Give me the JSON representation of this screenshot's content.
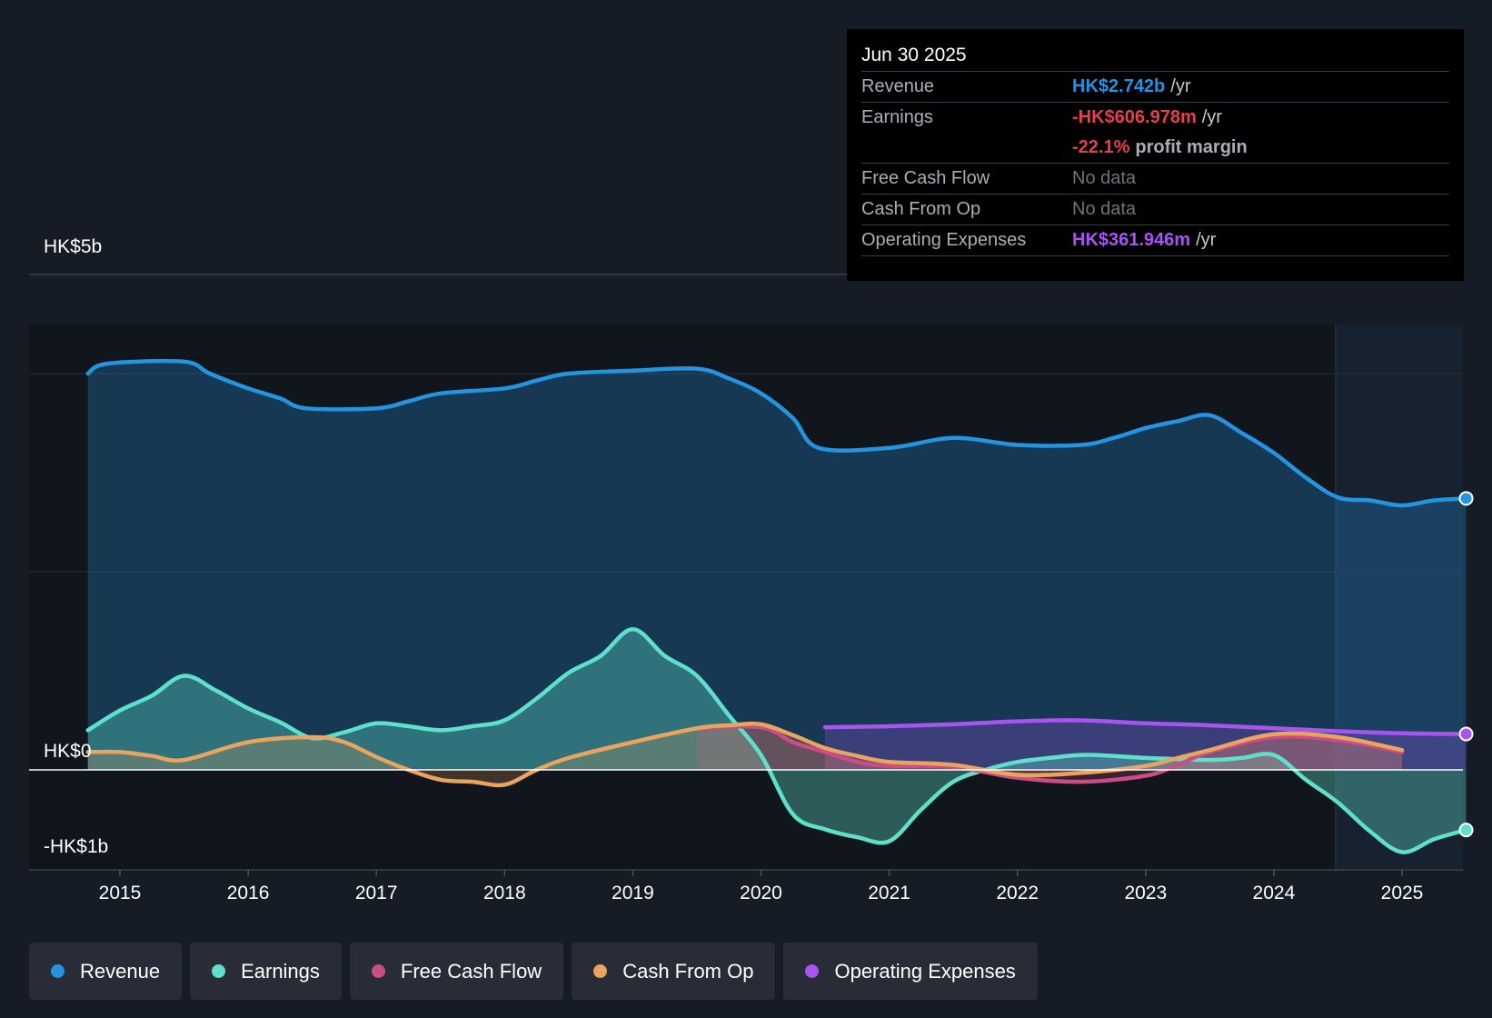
{
  "chart_data": {
    "type": "area",
    "title": "",
    "y_axis": {
      "min": -1,
      "max": 5,
      "unit": "HK$ billions",
      "labels": [
        {
          "value": 5,
          "text": "HK$5b"
        },
        {
          "value": 0,
          "text": "HK$0"
        },
        {
          "value": -1,
          "text": "-HK$1b"
        }
      ]
    },
    "x_axis": {
      "ticks": [
        "2015",
        "2016",
        "2017",
        "2018",
        "2019",
        "2020",
        "2021",
        "2022",
        "2023",
        "2024",
        "2025"
      ]
    },
    "highlight_from": 2024.5,
    "series": [
      {
        "name": "Revenue",
        "color": "#2394df",
        "points": [
          [
            2014.75,
            4.0
          ],
          [
            2014.9,
            4.1
          ],
          [
            2015.5,
            4.12
          ],
          [
            2015.7,
            4.0
          ],
          [
            2016.0,
            3.85
          ],
          [
            2016.25,
            3.75
          ],
          [
            2016.45,
            3.65
          ],
          [
            2017.0,
            3.65
          ],
          [
            2017.25,
            3.72
          ],
          [
            2017.5,
            3.8
          ],
          [
            2018.0,
            3.85
          ],
          [
            2018.25,
            3.93
          ],
          [
            2018.5,
            4.0
          ],
          [
            2019.0,
            4.03
          ],
          [
            2019.5,
            4.05
          ],
          [
            2019.75,
            3.95
          ],
          [
            2020.0,
            3.8
          ],
          [
            2020.25,
            3.55
          ],
          [
            2020.45,
            3.25
          ],
          [
            2021.0,
            3.25
          ],
          [
            2021.5,
            3.35
          ],
          [
            2022.0,
            3.28
          ],
          [
            2022.5,
            3.28
          ],
          [
            2022.75,
            3.35
          ],
          [
            2023.0,
            3.45
          ],
          [
            2023.25,
            3.52
          ],
          [
            2023.5,
            3.58
          ],
          [
            2023.75,
            3.4
          ],
          [
            2024.0,
            3.2
          ],
          [
            2024.25,
            2.95
          ],
          [
            2024.5,
            2.75
          ],
          [
            2024.75,
            2.72
          ],
          [
            2025.0,
            2.67
          ],
          [
            2025.25,
            2.72
          ],
          [
            2025.5,
            2.74
          ]
        ]
      },
      {
        "name": "Earnings",
        "color": "#5ee0cb",
        "points": [
          [
            2014.75,
            0.4
          ],
          [
            2015.0,
            0.6
          ],
          [
            2015.25,
            0.75
          ],
          [
            2015.5,
            0.95
          ],
          [
            2015.75,
            0.8
          ],
          [
            2016.0,
            0.62
          ],
          [
            2016.25,
            0.48
          ],
          [
            2016.5,
            0.32
          ],
          [
            2016.75,
            0.38
          ],
          [
            2017.0,
            0.47
          ],
          [
            2017.25,
            0.44
          ],
          [
            2017.5,
            0.4
          ],
          [
            2017.75,
            0.44
          ],
          [
            2018.0,
            0.5
          ],
          [
            2018.25,
            0.72
          ],
          [
            2018.5,
            0.98
          ],
          [
            2018.75,
            1.15
          ],
          [
            2019.0,
            1.42
          ],
          [
            2019.25,
            1.15
          ],
          [
            2019.5,
            0.95
          ],
          [
            2019.75,
            0.55
          ],
          [
            2020.0,
            0.15
          ],
          [
            2020.25,
            -0.45
          ],
          [
            2020.5,
            -0.6
          ],
          [
            2020.75,
            -0.68
          ],
          [
            2021.0,
            -0.72
          ],
          [
            2021.25,
            -0.4
          ],
          [
            2021.5,
            -0.12
          ],
          [
            2021.75,
            0.0
          ],
          [
            2022.0,
            0.08
          ],
          [
            2022.25,
            0.12
          ],
          [
            2022.5,
            0.15
          ],
          [
            2022.75,
            0.14
          ],
          [
            2023.0,
            0.12
          ],
          [
            2023.5,
            0.1
          ],
          [
            2023.75,
            0.12
          ],
          [
            2024.0,
            0.15
          ],
          [
            2024.25,
            -0.1
          ],
          [
            2024.5,
            -0.33
          ],
          [
            2024.75,
            -0.62
          ],
          [
            2025.0,
            -0.83
          ],
          [
            2025.25,
            -0.7
          ],
          [
            2025.5,
            -0.607
          ]
        ]
      },
      {
        "name": "Free Cash Flow",
        "color": "#cc4d85",
        "points": [
          [
            2019.5,
            0.42
          ],
          [
            2020.0,
            0.43
          ],
          [
            2020.25,
            0.28
          ],
          [
            2020.5,
            0.18
          ],
          [
            2020.75,
            0.08
          ],
          [
            2021.0,
            0.04
          ],
          [
            2021.5,
            0.03
          ],
          [
            2022.0,
            -0.08
          ],
          [
            2022.5,
            -0.12
          ],
          [
            2023.0,
            -0.06
          ],
          [
            2023.25,
            0.05
          ],
          [
            2023.5,
            0.18
          ],
          [
            2024.0,
            0.33
          ],
          [
            2024.5,
            0.3
          ],
          [
            2025.0,
            0.18
          ]
        ]
      },
      {
        "name": "Cash From Op",
        "color": "#e9a45e",
        "points": [
          [
            2014.75,
            0.18
          ],
          [
            2015.0,
            0.18
          ],
          [
            2015.25,
            0.14
          ],
          [
            2015.5,
            0.1
          ],
          [
            2016.0,
            0.28
          ],
          [
            2016.5,
            0.33
          ],
          [
            2016.75,
            0.28
          ],
          [
            2017.0,
            0.13
          ],
          [
            2017.25,
            0.0
          ],
          [
            2017.5,
            -0.1
          ],
          [
            2017.75,
            -0.12
          ],
          [
            2018.0,
            -0.15
          ],
          [
            2018.25,
            0.0
          ],
          [
            2018.5,
            0.12
          ],
          [
            2019.0,
            0.28
          ],
          [
            2019.5,
            0.42
          ],
          [
            2019.75,
            0.45
          ],
          [
            2020.0,
            0.46
          ],
          [
            2020.25,
            0.35
          ],
          [
            2020.5,
            0.22
          ],
          [
            2020.75,
            0.14
          ],
          [
            2021.0,
            0.08
          ],
          [
            2021.5,
            0.05
          ],
          [
            2022.0,
            -0.05
          ],
          [
            2022.5,
            -0.03
          ],
          [
            2023.0,
            0.04
          ],
          [
            2023.25,
            0.12
          ],
          [
            2023.5,
            0.2
          ],
          [
            2024.0,
            0.36
          ],
          [
            2024.5,
            0.33
          ],
          [
            2025.0,
            0.2
          ]
        ]
      },
      {
        "name": "Operating Expenses",
        "color": "#a855f0",
        "points": [
          [
            2020.5,
            0.43
          ],
          [
            2021.0,
            0.44
          ],
          [
            2021.5,
            0.46
          ],
          [
            2022.0,
            0.49
          ],
          [
            2022.5,
            0.5
          ],
          [
            2023.0,
            0.47
          ],
          [
            2023.5,
            0.45
          ],
          [
            2024.0,
            0.42
          ],
          [
            2024.5,
            0.39
          ],
          [
            2025.0,
            0.37
          ],
          [
            2025.5,
            0.362
          ]
        ]
      }
    ]
  },
  "tooltip": {
    "date": "Jun 30 2025",
    "revenue_label": "Revenue",
    "revenue_value": "HK$2.742b",
    "revenue_unit": "/yr",
    "revenue_color": "#2394df",
    "earnings_label": "Earnings",
    "earnings_value": "-HK$606.978m",
    "earnings_unit": "/yr",
    "earnings_color": "#e6404c",
    "margin_value": "-22.1%",
    "margin_text": "profit margin",
    "fcf_label": "Free Cash Flow",
    "fcf_value": "No data",
    "cfo_label": "Cash From Op",
    "cfo_value": "No data",
    "opex_label": "Operating Expenses",
    "opex_value": "HK$361.946m",
    "opex_unit": "/yr",
    "opex_color": "#a855f0"
  },
  "legend": [
    {
      "label": "Revenue",
      "color": "#2394df"
    },
    {
      "label": "Earnings",
      "color": "#5ee0cb"
    },
    {
      "label": "Free Cash Flow",
      "color": "#cc4d85"
    },
    {
      "label": "Cash From Op",
      "color": "#e9a45e"
    },
    {
      "label": "Operating Expenses",
      "color": "#a855f0"
    }
  ]
}
